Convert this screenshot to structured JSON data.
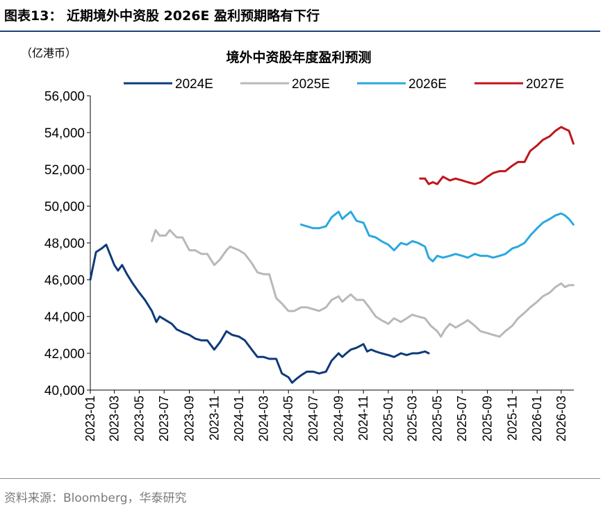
{
  "figure": {
    "title": "图表13：  近期境外中资股 2026E 盈利预期略有下行",
    "source": "资料来源：Bloomberg，华泰研究"
  },
  "chart_data": {
    "type": "line",
    "title": "境外中资股年度盈利预测",
    "unit_label": "（亿港币）",
    "xlabel": "",
    "ylabel": "",
    "ylim": [
      40000,
      56000
    ],
    "yticks": [
      "40,000",
      "42,000",
      "44,000",
      "46,000",
      "48,000",
      "50,000",
      "52,000",
      "54,000",
      "56,000"
    ],
    "ytick_values": [
      40000,
      42000,
      44000,
      46000,
      48000,
      50000,
      52000,
      54000,
      56000
    ],
    "xticks": [
      "2023-01",
      "2023-03",
      "2023-05",
      "2023-07",
      "2023-09",
      "2023-11",
      "2024-01",
      "2024-03",
      "2024-05",
      "2024-07",
      "2024-09",
      "2024-11",
      "2025-01",
      "2025-03",
      "2025-05",
      "2025-07",
      "2025-09",
      "2025-11",
      "2026-01",
      "2026-03"
    ],
    "grid": false,
    "legend": "top",
    "series": [
      {
        "name": "2024E",
        "color": "#0f3a7a",
        "points": [
          [
            "2023-01-01",
            46000
          ],
          [
            "2023-01-15",
            47500
          ],
          [
            "2023-01-29",
            47700
          ],
          [
            "2023-02-09",
            47900
          ],
          [
            "2023-02-20",
            47300
          ],
          [
            "2023-03-01",
            46800
          ],
          [
            "2023-03-10",
            46500
          ],
          [
            "2023-03-20",
            46800
          ],
          [
            "2023-04-01",
            46300
          ],
          [
            "2023-04-15",
            45800
          ],
          [
            "2023-05-01",
            45300
          ],
          [
            "2023-05-15",
            44900
          ],
          [
            "2023-06-01",
            44300
          ],
          [
            "2023-06-12",
            43700
          ],
          [
            "2023-06-20",
            44000
          ],
          [
            "2023-07-05",
            43800
          ],
          [
            "2023-07-20",
            43600
          ],
          [
            "2023-08-01",
            43300
          ],
          [
            "2023-08-20",
            43100
          ],
          [
            "2023-09-01",
            43000
          ],
          [
            "2023-09-15",
            42800
          ],
          [
            "2023-10-01",
            42700
          ],
          [
            "2023-10-15",
            42700
          ],
          [
            "2023-11-01",
            42200
          ],
          [
            "2023-11-15",
            42600
          ],
          [
            "2023-12-01",
            43200
          ],
          [
            "2023-12-15",
            43000
          ],
          [
            "2024-01-01",
            42900
          ],
          [
            "2024-01-15",
            42700
          ],
          [
            "2024-02-01",
            42200
          ],
          [
            "2024-02-15",
            41800
          ],
          [
            "2024-03-01",
            41800
          ],
          [
            "2024-03-15",
            41700
          ],
          [
            "2024-04-01",
            41700
          ],
          [
            "2024-04-15",
            40900
          ],
          [
            "2024-05-01",
            40700
          ],
          [
            "2024-05-10",
            40400
          ],
          [
            "2024-05-20",
            40600
          ],
          [
            "2024-06-01",
            40800
          ],
          [
            "2024-06-15",
            41000
          ],
          [
            "2024-07-01",
            41000
          ],
          [
            "2024-07-15",
            40900
          ],
          [
            "2024-08-01",
            41000
          ],
          [
            "2024-08-15",
            41600
          ],
          [
            "2024-09-01",
            42000
          ],
          [
            "2024-09-10",
            41800
          ],
          [
            "2024-09-20",
            42000
          ],
          [
            "2024-10-01",
            42200
          ],
          [
            "2024-10-15",
            42300
          ],
          [
            "2024-11-01",
            42500
          ],
          [
            "2024-11-10",
            42100
          ],
          [
            "2024-11-20",
            42200
          ],
          [
            "2024-12-01",
            42100
          ],
          [
            "2024-12-15",
            42000
          ],
          [
            "2025-01-01",
            41900
          ],
          [
            "2025-01-15",
            41800
          ],
          [
            "2025-02-01",
            42000
          ],
          [
            "2025-02-15",
            41900
          ],
          [
            "2025-03-01",
            42000
          ],
          [
            "2025-03-15",
            42000
          ],
          [
            "2025-04-01",
            42100
          ],
          [
            "2025-04-10",
            42000
          ]
        ]
      },
      {
        "name": "2025E",
        "color": "#b8b8b8",
        "points": [
          [
            "2023-06-01",
            48100
          ],
          [
            "2023-06-10",
            48700
          ],
          [
            "2023-06-20",
            48400
          ],
          [
            "2023-07-05",
            48400
          ],
          [
            "2023-07-15",
            48700
          ],
          [
            "2023-08-01",
            48300
          ],
          [
            "2023-08-15",
            48300
          ],
          [
            "2023-09-01",
            47600
          ],
          [
            "2023-09-15",
            47600
          ],
          [
            "2023-10-01",
            47400
          ],
          [
            "2023-10-15",
            47400
          ],
          [
            "2023-11-01",
            46800
          ],
          [
            "2023-11-15",
            47100
          ],
          [
            "2023-12-01",
            47600
          ],
          [
            "2023-12-10",
            47800
          ],
          [
            "2024-01-01",
            47600
          ],
          [
            "2024-01-15",
            47400
          ],
          [
            "2024-02-01",
            46900
          ],
          [
            "2024-02-15",
            46400
          ],
          [
            "2024-03-01",
            46300
          ],
          [
            "2024-03-15",
            46300
          ],
          [
            "2024-04-01",
            45000
          ],
          [
            "2024-04-15",
            44700
          ],
          [
            "2024-05-01",
            44300
          ],
          [
            "2024-05-15",
            44300
          ],
          [
            "2024-06-01",
            44500
          ],
          [
            "2024-06-15",
            44500
          ],
          [
            "2024-07-01",
            44400
          ],
          [
            "2024-07-15",
            44300
          ],
          [
            "2024-08-01",
            44500
          ],
          [
            "2024-08-15",
            44900
          ],
          [
            "2024-09-01",
            45100
          ],
          [
            "2024-09-10",
            44800
          ],
          [
            "2024-09-20",
            45000
          ],
          [
            "2024-10-01",
            45200
          ],
          [
            "2024-10-15",
            44900
          ],
          [
            "2024-11-01",
            44900
          ],
          [
            "2024-11-15",
            44500
          ],
          [
            "2024-12-01",
            44000
          ],
          [
            "2024-12-15",
            43800
          ],
          [
            "2025-01-01",
            43600
          ],
          [
            "2025-01-15",
            43900
          ],
          [
            "2025-02-01",
            43700
          ],
          [
            "2025-02-15",
            43900
          ],
          [
            "2025-03-01",
            44100
          ],
          [
            "2025-03-15",
            44000
          ],
          [
            "2025-04-01",
            43900
          ],
          [
            "2025-04-15",
            43500
          ],
          [
            "2025-05-01",
            43200
          ],
          [
            "2025-05-10",
            42900
          ],
          [
            "2025-05-20",
            43300
          ],
          [
            "2025-06-01",
            43600
          ],
          [
            "2025-06-15",
            43400
          ],
          [
            "2025-07-01",
            43600
          ],
          [
            "2025-07-15",
            43800
          ],
          [
            "2025-08-01",
            43500
          ],
          [
            "2025-08-15",
            43200
          ],
          [
            "2025-09-01",
            43100
          ],
          [
            "2025-09-15",
            43000
          ],
          [
            "2025-10-01",
            42900
          ],
          [
            "2025-10-15",
            43200
          ],
          [
            "2025-11-01",
            43500
          ],
          [
            "2025-11-15",
            43900
          ],
          [
            "2025-12-01",
            44200
          ],
          [
            "2025-12-15",
            44500
          ],
          [
            "2026-01-01",
            44800
          ],
          [
            "2026-01-15",
            45100
          ],
          [
            "2026-02-01",
            45300
          ],
          [
            "2026-02-15",
            45600
          ],
          [
            "2026-03-01",
            45800
          ],
          [
            "2026-03-10",
            45600
          ],
          [
            "2026-03-20",
            45700
          ],
          [
            "2026-03-31",
            45700
          ]
        ]
      },
      {
        "name": "2026E",
        "color": "#29a8e0",
        "points": [
          [
            "2024-06-01",
            49000
          ],
          [
            "2024-06-15",
            48900
          ],
          [
            "2024-07-01",
            48800
          ],
          [
            "2024-07-15",
            48800
          ],
          [
            "2024-08-01",
            48900
          ],
          [
            "2024-08-15",
            49400
          ],
          [
            "2024-09-01",
            49700
          ],
          [
            "2024-09-10",
            49300
          ],
          [
            "2024-09-20",
            49500
          ],
          [
            "2024-10-01",
            49700
          ],
          [
            "2024-10-15",
            49200
          ],
          [
            "2024-11-01",
            49100
          ],
          [
            "2024-11-15",
            48400
          ],
          [
            "2024-12-01",
            48300
          ],
          [
            "2024-12-15",
            48100
          ],
          [
            "2025-01-01",
            47900
          ],
          [
            "2025-01-15",
            47600
          ],
          [
            "2025-02-01",
            48000
          ],
          [
            "2025-02-15",
            47900
          ],
          [
            "2025-03-01",
            48100
          ],
          [
            "2025-03-15",
            48000
          ],
          [
            "2025-04-01",
            47800
          ],
          [
            "2025-04-10",
            47200
          ],
          [
            "2025-04-20",
            47000
          ],
          [
            "2025-05-01",
            47300
          ],
          [
            "2025-05-15",
            47200
          ],
          [
            "2025-06-01",
            47300
          ],
          [
            "2025-06-15",
            47400
          ],
          [
            "2025-07-01",
            47300
          ],
          [
            "2025-07-15",
            47200
          ],
          [
            "2025-08-01",
            47400
          ],
          [
            "2025-08-15",
            47300
          ],
          [
            "2025-09-01",
            47300
          ],
          [
            "2025-09-15",
            47200
          ],
          [
            "2025-10-01",
            47300
          ],
          [
            "2025-10-15",
            47400
          ],
          [
            "2025-11-01",
            47700
          ],
          [
            "2025-11-15",
            47800
          ],
          [
            "2025-12-01",
            48000
          ],
          [
            "2025-12-15",
            48400
          ],
          [
            "2026-01-01",
            48800
          ],
          [
            "2026-01-15",
            49100
          ],
          [
            "2026-02-01",
            49300
          ],
          [
            "2026-02-15",
            49500
          ],
          [
            "2026-03-01",
            49600
          ],
          [
            "2026-03-10",
            49500
          ],
          [
            "2026-03-20",
            49300
          ],
          [
            "2026-03-31",
            49000
          ]
        ]
      },
      {
        "name": "2027E",
        "color": "#c0141b",
        "points": [
          [
            "2025-03-20",
            51500
          ],
          [
            "2025-04-01",
            51500
          ],
          [
            "2025-04-10",
            51200
          ],
          [
            "2025-04-20",
            51300
          ],
          [
            "2025-05-01",
            51200
          ],
          [
            "2025-05-15",
            51600
          ],
          [
            "2025-06-01",
            51400
          ],
          [
            "2025-06-15",
            51500
          ],
          [
            "2025-07-01",
            51400
          ],
          [
            "2025-07-15",
            51300
          ],
          [
            "2025-08-01",
            51200
          ],
          [
            "2025-08-15",
            51300
          ],
          [
            "2025-09-01",
            51600
          ],
          [
            "2025-09-15",
            51800
          ],
          [
            "2025-10-01",
            51900
          ],
          [
            "2025-10-15",
            51900
          ],
          [
            "2025-11-01",
            52200
          ],
          [
            "2025-11-15",
            52400
          ],
          [
            "2025-12-01",
            52400
          ],
          [
            "2025-12-15",
            53000
          ],
          [
            "2026-01-01",
            53300
          ],
          [
            "2026-01-15",
            53600
          ],
          [
            "2026-02-01",
            53800
          ],
          [
            "2026-02-15",
            54100
          ],
          [
            "2026-03-01",
            54300
          ],
          [
            "2026-03-10",
            54200
          ],
          [
            "2026-03-20",
            54100
          ],
          [
            "2026-03-31",
            53400
          ]
        ]
      }
    ]
  }
}
